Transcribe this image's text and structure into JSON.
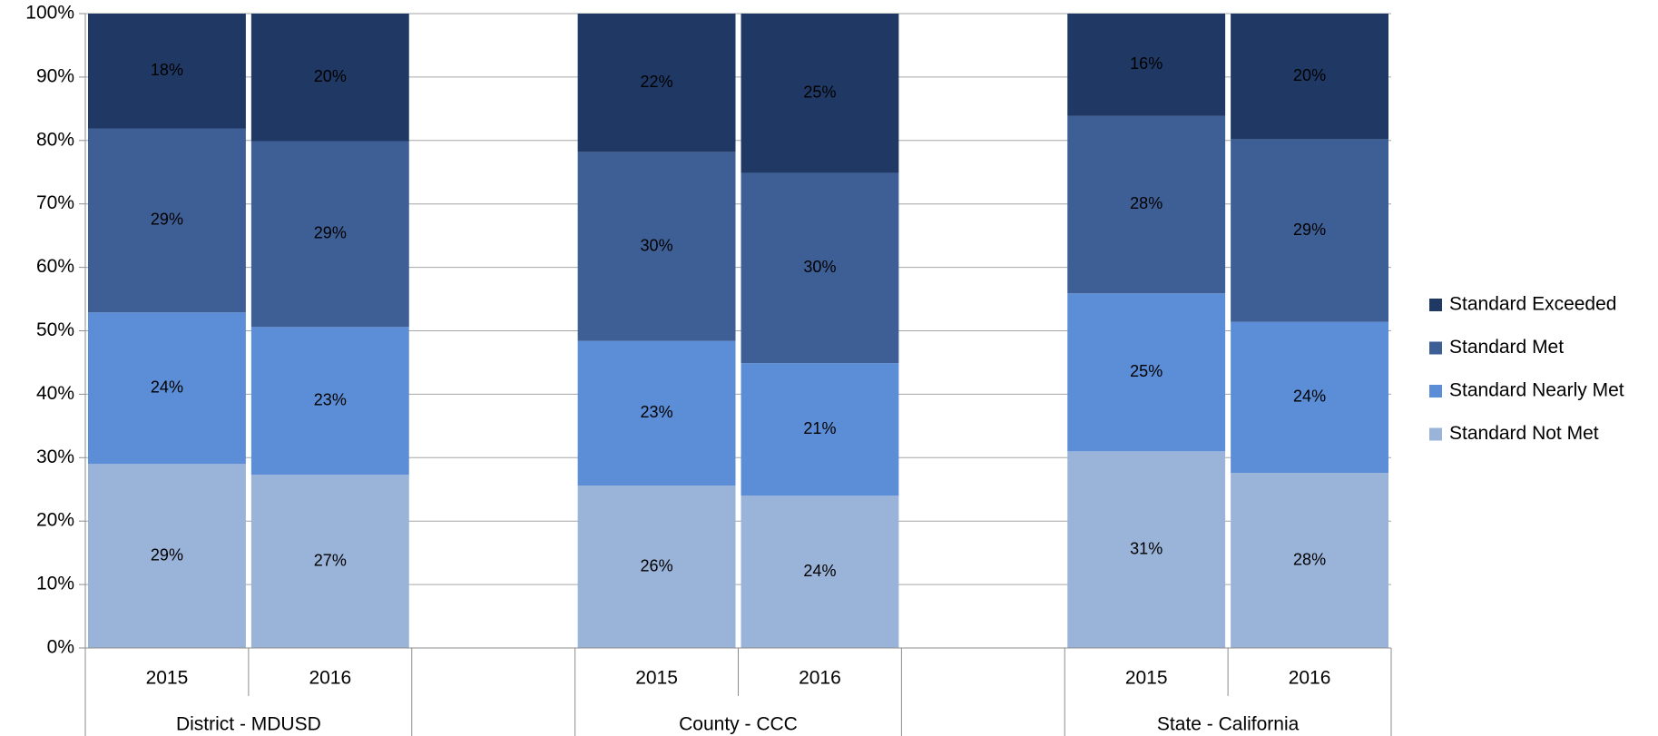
{
  "chart_data": {
    "type": "stacked_bar",
    "categories": [
      "2015",
      "2016",
      null,
      "2015",
      "2016",
      null,
      "2015",
      "2016"
    ],
    "groups": [
      "District - MDUSD",
      "County - CCC",
      "State - California"
    ],
    "series": [
      {
        "name": "Standard Not Met",
        "color": "#9ab3d9",
        "label_color": "#000000",
        "values": [
          29.0,
          27.3,
          null,
          25.6,
          24.0,
          null,
          31.0,
          27.6
        ],
        "value_labels": [
          "29%",
          "27%",
          null,
          "26%",
          "24%",
          null,
          "31%",
          "28%"
        ]
      },
      {
        "name": "Standard Nearly Met",
        "color": "#5b8ed6",
        "label_color": "#000000",
        "values": [
          23.9,
          23.3,
          null,
          22.8,
          20.9,
          null,
          24.9,
          23.8
        ],
        "value_labels": [
          "24%",
          "23%",
          null,
          "23%",
          "21%",
          null,
          "25%",
          "24%"
        ]
      },
      {
        "name": "Standard Met",
        "color": "#3e5f96",
        "label_color": "#ffffff",
        "values": [
          29.0,
          29.3,
          null,
          29.8,
          30.0,
          null,
          28.0,
          28.8
        ],
        "value_labels": [
          "29%",
          "29%",
          null,
          "30%",
          "30%",
          null,
          "28%",
          "29%"
        ]
      },
      {
        "name": "Standard Exceeded",
        "color": "#1f3864",
        "label_color": "#ffffff",
        "values": [
          18.1,
          20.1,
          null,
          21.8,
          25.1,
          null,
          16.1,
          19.8
        ],
        "value_labels": [
          "18%",
          "20%",
          null,
          "22%",
          "25%",
          null,
          "16%",
          "20%"
        ]
      }
    ],
    "ylim": [
      0,
      100
    ],
    "yticks": [
      {
        "value": 0,
        "label": "0%"
      },
      {
        "value": 10,
        "label": "10%"
      },
      {
        "value": 20,
        "label": "20%"
      },
      {
        "value": 30,
        "label": "30%"
      },
      {
        "value": 40,
        "label": "40%"
      },
      {
        "value": 50,
        "label": "50%"
      },
      {
        "value": 60,
        "label": "60%"
      },
      {
        "value": 70,
        "label": "70%"
      },
      {
        "value": 80,
        "label": "80%"
      },
      {
        "value": 90,
        "label": "90%"
      },
      {
        "value": 100,
        "label": "100%"
      }
    ],
    "grid": true,
    "legend": "right"
  }
}
